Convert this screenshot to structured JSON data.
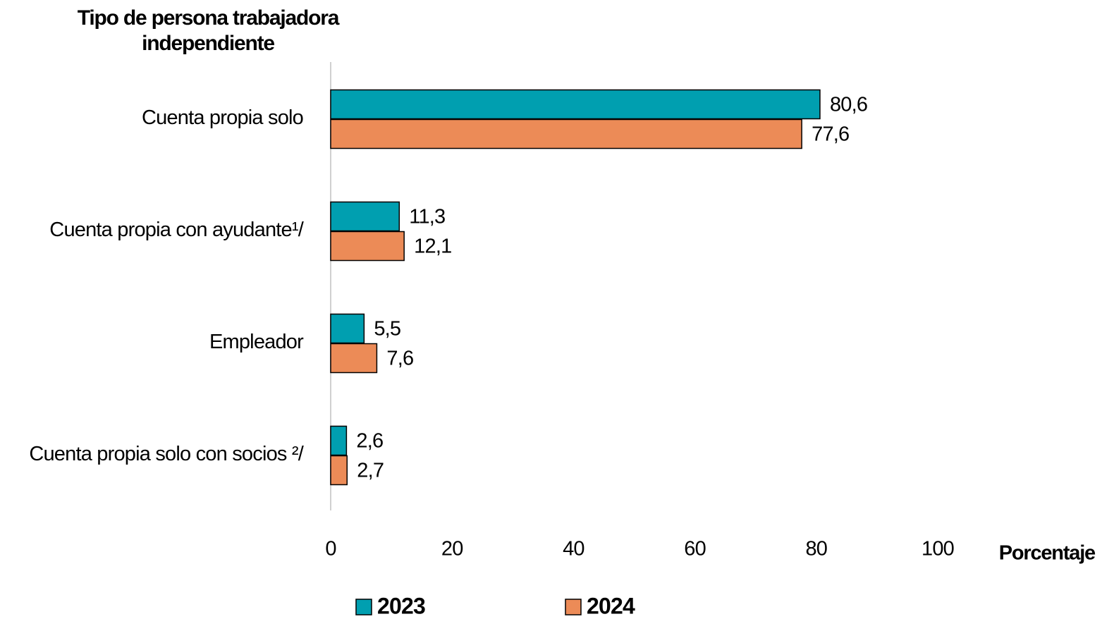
{
  "chart_data": {
    "type": "barh",
    "title": "Tipo de persona trabajadora independiente",
    "xlabel": "Porcentaje",
    "categories": [
      "Cuenta propia solo",
      "Cuenta propia con ayudante¹/",
      "Empleador",
      "Cuenta propia solo con socios ²/"
    ],
    "series": [
      {
        "name": "2023",
        "color": "#009fb0",
        "values": [
          80.6,
          11.3,
          5.5,
          2.6
        ],
        "value_labels": [
          "80,6",
          "11,3",
          "5,5",
          "2,6"
        ]
      },
      {
        "name": "2024",
        "color": "#ec8b57",
        "values": [
          77.6,
          12.1,
          7.6,
          2.7
        ],
        "value_labels": [
          "77,6",
          "12,1",
          "7,6",
          "2,7"
        ]
      }
    ],
    "xlim": [
      0,
      100
    ],
    "xticks": [
      0,
      20,
      40,
      60,
      80,
      100
    ],
    "grid": false,
    "legend": "bottom"
  }
}
